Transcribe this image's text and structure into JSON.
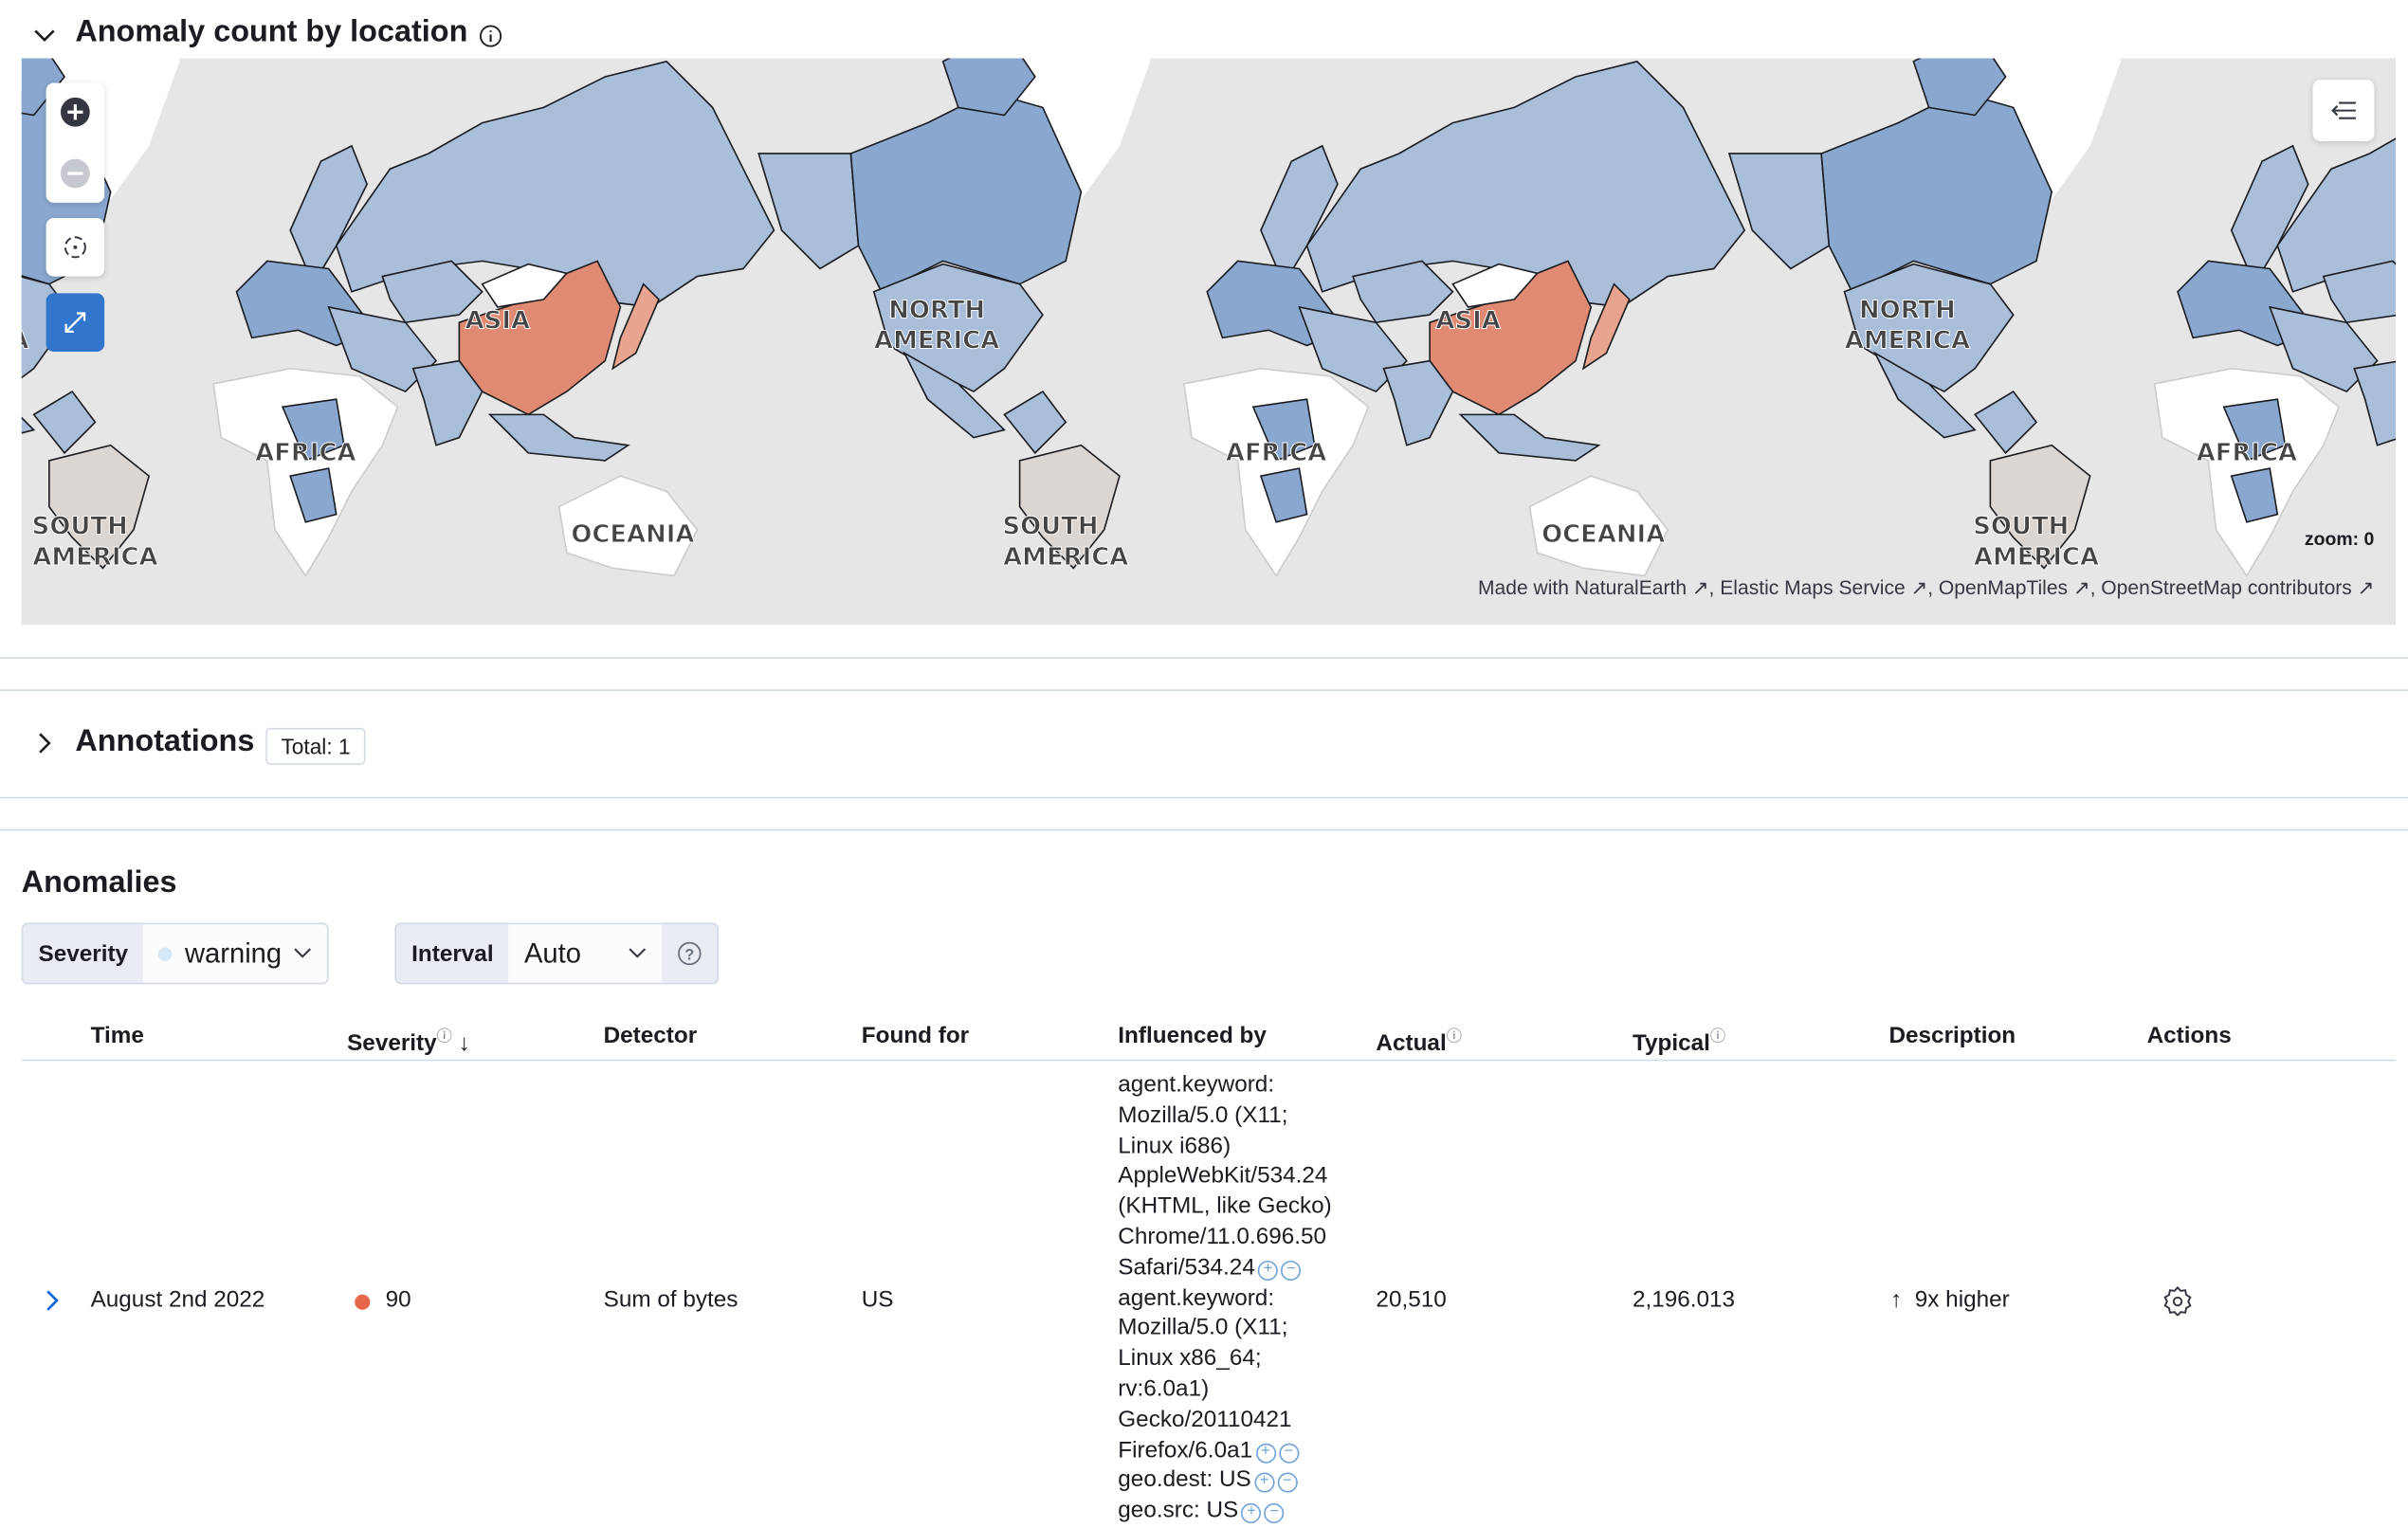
{
  "map_section": {
    "title": "Anomaly count by location",
    "info_icon": "info-icon",
    "zoom_label": "zoom: 0",
    "attribution": [
      "Made with NaturalEarth",
      "Elastic Maps Service",
      "OpenMapTiles",
      "OpenStreetMap contributors"
    ],
    "labels": {
      "asia": "ASIA",
      "north": "NORTH",
      "america": "AMERICA",
      "africa": "AFRICA",
      "oceania": "OCEANIA",
      "south": "SOUTH",
      "south_america": "AMERICA"
    },
    "colors": {
      "low": "#a9bed9",
      "mid": "#8aa8cf",
      "high": "#e08a74",
      "ocean": "#e6e6e6",
      "land": "#ffffff"
    }
  },
  "annotations": {
    "title": "Annotations",
    "total": "Total: 1"
  },
  "anomalies": {
    "title": "Anomalies",
    "severity_label": "Severity",
    "severity_value": "warning",
    "interval_label": "Interval",
    "interval_value": "Auto",
    "columns": [
      "Time",
      "Severity",
      "Detector",
      "Found for",
      "Influenced by",
      "Actual",
      "Typical",
      "Description",
      "Actions"
    ],
    "rows": [
      {
        "time": "August 2nd 2022",
        "severity": "90",
        "severity_color": "#e7664c",
        "detector": "Sum of bytes",
        "found_for": "US",
        "influencers": [
          [
            "agent.keyword:",
            "Mozilla/5.0 (X11;",
            "Linux i686)",
            "AppleWebKit/534.24",
            "(KHTML, like Gecko)",
            "Chrome/11.0.696.50",
            "Safari/534.24"
          ],
          [
            "agent.keyword:",
            "Mozilla/5.0 (X11;",
            "Linux x86_64;",
            "rv:6.0a1)",
            "Gecko/20110421",
            "Firefox/6.0a1"
          ],
          [
            "geo.dest: US"
          ],
          [
            "geo.src: US"
          ]
        ],
        "actual": "20,510",
        "typical": "2,196.013",
        "description": "9x higher"
      }
    ]
  }
}
